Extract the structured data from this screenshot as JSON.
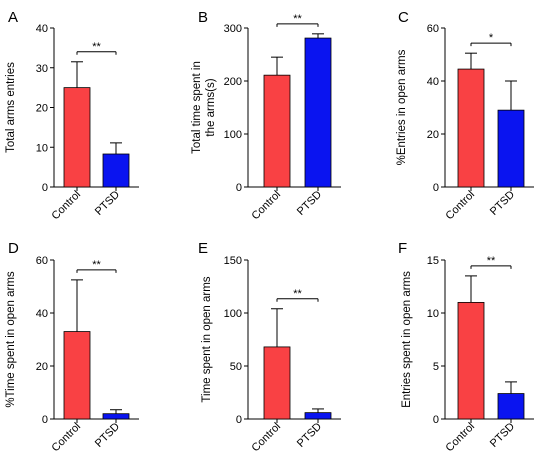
{
  "chart_data": [
    {
      "panel": "A",
      "type": "bar",
      "categories": [
        "Control",
        "PTSD"
      ],
      "values": [
        25,
        8.3
      ],
      "errors": [
        6.5,
        2.8
      ],
      "ylabel": "Total arms entries",
      "ylim": [
        0,
        40
      ],
      "yticks": [
        "0",
        "10",
        "20",
        "30",
        "40"
      ],
      "significance": "**"
    },
    {
      "panel": "B",
      "type": "bar",
      "categories": [
        "Control",
        "PTSD"
      ],
      "values": [
        211,
        281
      ],
      "errors": [
        34,
        8
      ],
      "ylabel": [
        "Total time spent in",
        "the arms(s)"
      ],
      "ylim": [
        0,
        300
      ],
      "yticks": [
        "0",
        "100",
        "200",
        "300"
      ],
      "significance": "**"
    },
    {
      "panel": "C",
      "type": "bar",
      "categories": [
        "Control",
        "PTSD"
      ],
      "values": [
        44.5,
        29
      ],
      "errors": [
        6,
        11
      ],
      "ylabel": "%Entries in open arms",
      "ylim": [
        0,
        60
      ],
      "yticks": [
        "0",
        "20",
        "40",
        "60"
      ],
      "significance": "*"
    },
    {
      "panel": "D",
      "type": "bar",
      "categories": [
        "Control",
        "PTSD"
      ],
      "values": [
        33,
        2
      ],
      "errors": [
        19.5,
        1.5
      ],
      "ylabel": "%Time spent in open arms",
      "ylim": [
        0,
        60
      ],
      "yticks": [
        "0",
        "20",
        "40",
        "60"
      ],
      "significance": "**"
    },
    {
      "panel": "E",
      "type": "bar",
      "categories": [
        "Control",
        "PTSD"
      ],
      "values": [
        68,
        6
      ],
      "errors": [
        36,
        3.5
      ],
      "ylabel": "Time spent in open arms",
      "ylim": [
        0,
        150
      ],
      "yticks": [
        "0",
        "50",
        "100",
        "150"
      ],
      "significance": "**"
    },
    {
      "panel": "F",
      "type": "bar",
      "categories": [
        "Control",
        "PTSD"
      ],
      "values": [
        11,
        2.4
      ],
      "errors": [
        2.5,
        1.1
      ],
      "ylabel": "Entries spent in open arms",
      "ylim": [
        0,
        15
      ],
      "yticks": [
        "0",
        "5",
        "10",
        "15"
      ],
      "significance": "**"
    }
  ],
  "colors": {
    "control": "#f94144",
    "ptsd": "#0a14f0"
  }
}
